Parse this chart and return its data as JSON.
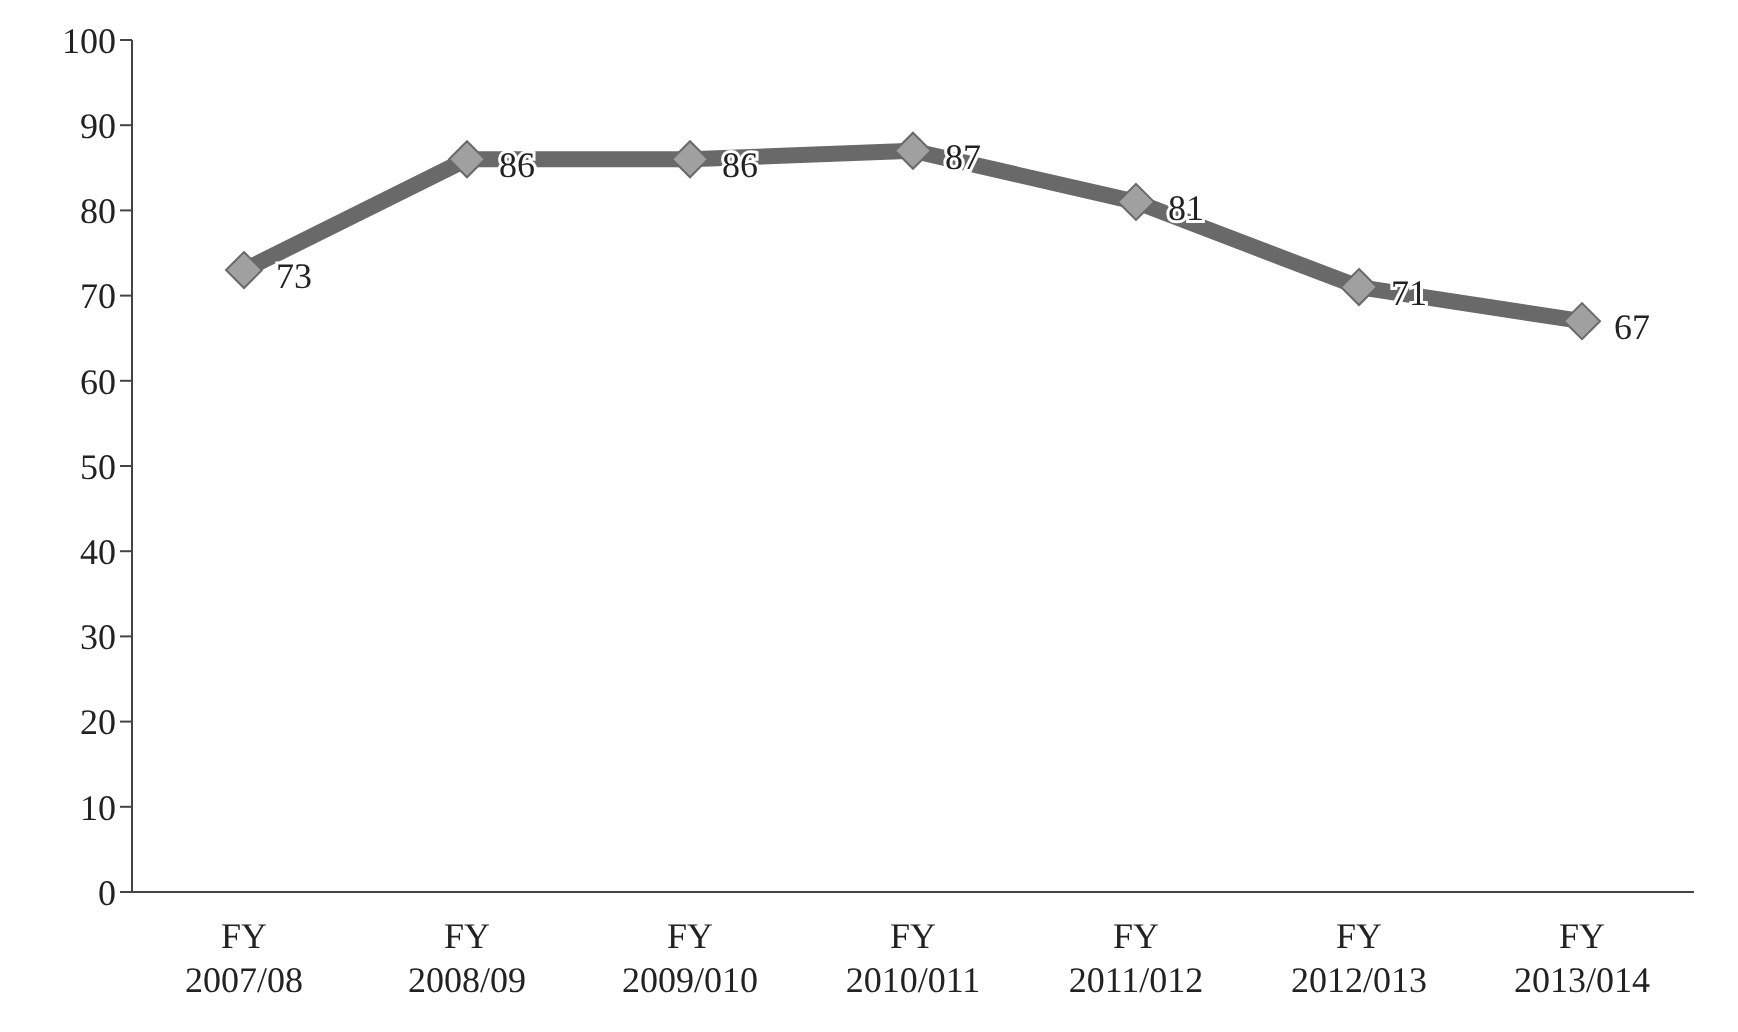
{
  "chart_data": {
    "type": "line",
    "categories": [
      "FY 2007/08",
      "FY 2008/09",
      "FY 2009/010",
      "FY 2010/011",
      "FY 2011/012",
      "FY 2012/013",
      "FY 2013/014"
    ],
    "series": [
      {
        "color": "#696969",
        "values": [
          73,
          86,
          86,
          87,
          81,
          71,
          67
        ]
      }
    ],
    "ylim": [
      0,
      100
    ],
    "yticks": [
      0,
      10,
      20,
      30,
      40,
      50,
      60,
      70,
      80,
      90,
      100
    ],
    "grid": false,
    "legend": false,
    "marker": "diamond",
    "line_style": "solid",
    "data_labels": true
  }
}
